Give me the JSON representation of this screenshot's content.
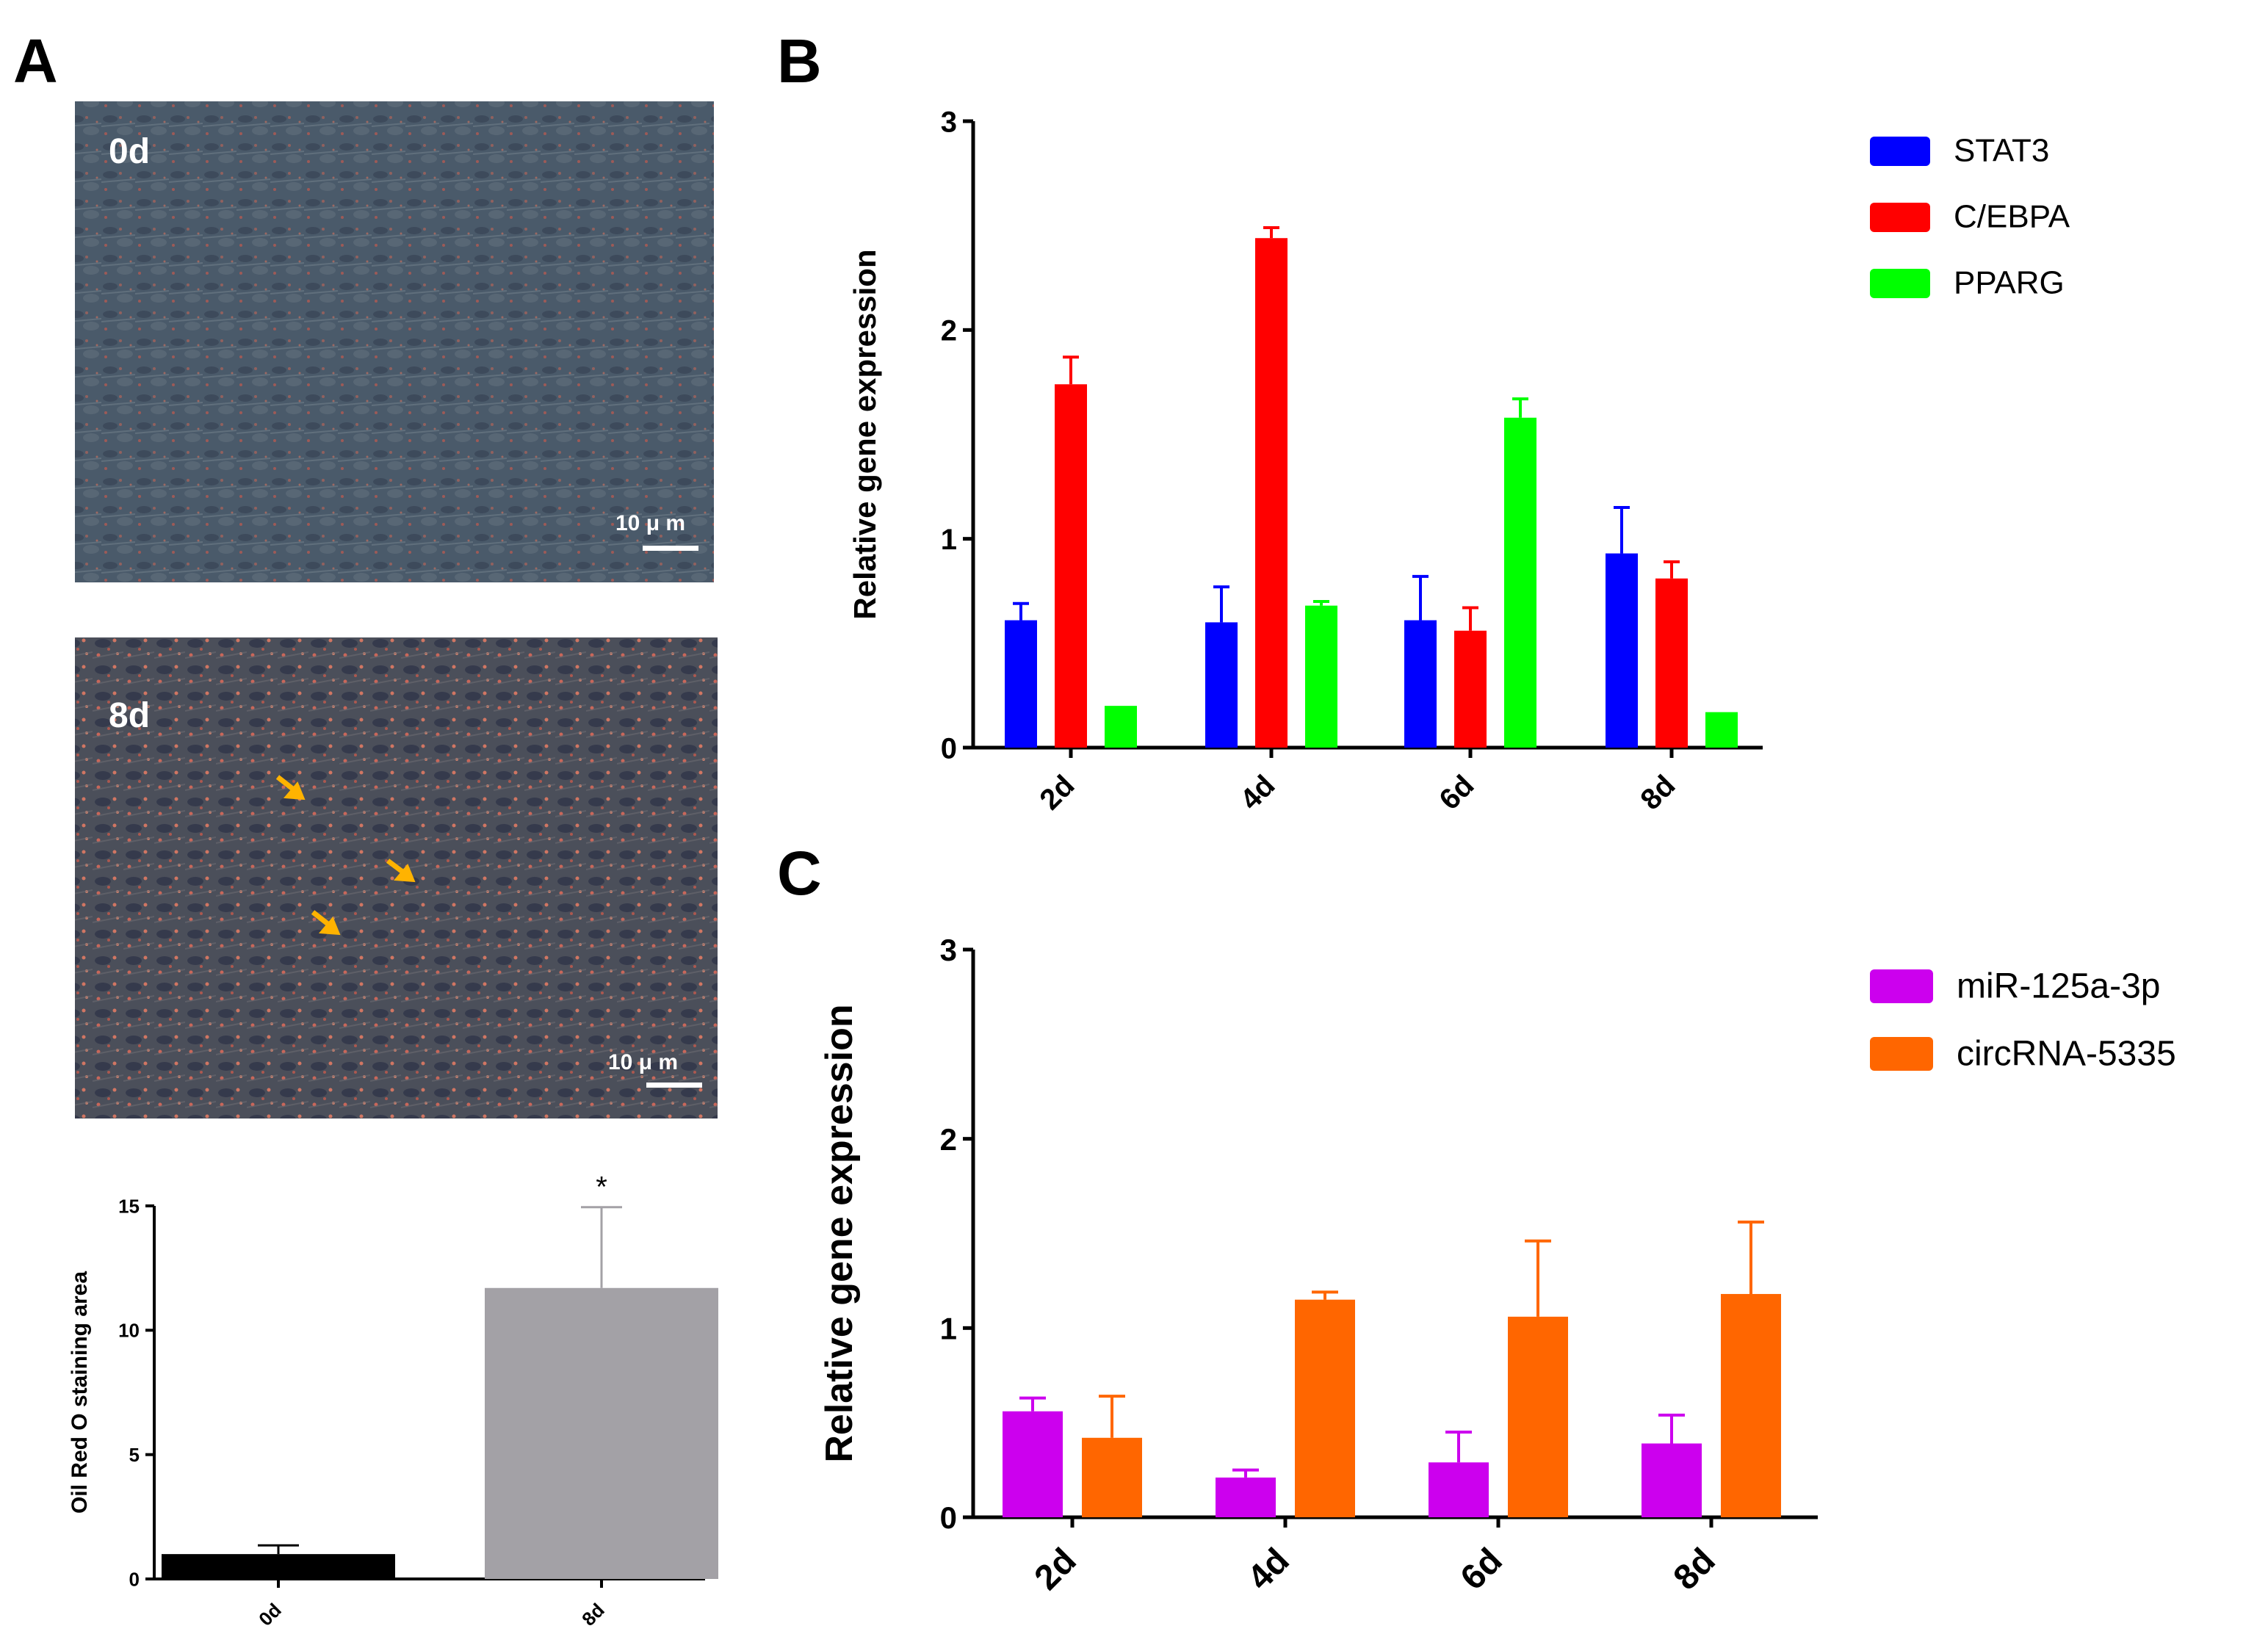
{
  "panels": {
    "a": "A",
    "b": "B",
    "c": "C"
  },
  "micrographs": [
    {
      "day_label": "0d",
      "scale_bar": "10 μ m"
    },
    {
      "day_label": "8d",
      "scale_bar": "10 μ m"
    }
  ],
  "colors": {
    "stat3": "#0000ff",
    "cebpa": "#ff0000",
    "pparg": "#00ff00",
    "mir": "#cc00ee",
    "circ": "#ff6600",
    "bar_0d": "#000000",
    "bar_8d": "#a3a1a6",
    "arrow": "#ffb300"
  },
  "chart_data": [
    {
      "id": "A-quant",
      "type": "bar",
      "categories": [
        "0d",
        "8d"
      ],
      "values": [
        1.0,
        11.7
      ],
      "errors": [
        0.35,
        3.25
      ],
      "colors": [
        "#000000",
        "#a3a1a6"
      ],
      "xlabel": "",
      "ylabel": "Oil Red O staining area",
      "ylim": [
        0,
        15
      ],
      "yticks": [
        0,
        5,
        10,
        15
      ],
      "annotations": [
        {
          "category": "8d",
          "text": "*"
        }
      ]
    },
    {
      "id": "B",
      "type": "bar",
      "categories": [
        "2d",
        "4d",
        "6d",
        "8d"
      ],
      "series": [
        {
          "name": "STAT3",
          "color": "#0000ff",
          "values": [
            0.61,
            0.6,
            0.61,
            0.93
          ],
          "errors": [
            0.08,
            0.17,
            0.21,
            0.22
          ]
        },
        {
          "name": "C/EBPA",
          "color": "#ff0000",
          "values": [
            1.74,
            2.44,
            0.56,
            0.81
          ],
          "errors": [
            0.13,
            0.05,
            0.11,
            0.08
          ]
        },
        {
          "name": "PPARG",
          "color": "#00ff00",
          "values": [
            0.2,
            0.68,
            1.58,
            0.17
          ],
          "errors": [
            0.0,
            0.02,
            0.09,
            0.0
          ]
        }
      ],
      "xlabel": "",
      "ylabel": "Relative gene expression",
      "ylim": [
        0,
        3
      ],
      "yticks": [
        0,
        1,
        2,
        3
      ],
      "legend": "top-right"
    },
    {
      "id": "C",
      "type": "bar",
      "categories": [
        "2d",
        "4d",
        "6d",
        "8d"
      ],
      "series": [
        {
          "name": "miR-125a-3p",
          "color": "#cc00ee",
          "values": [
            0.56,
            0.21,
            0.29,
            0.39
          ],
          "errors": [
            0.07,
            0.04,
            0.16,
            0.15
          ]
        },
        {
          "name": "circRNA-5335",
          "color": "#ff6600",
          "values": [
            0.42,
            1.15,
            1.06,
            1.18
          ],
          "errors": [
            0.22,
            0.04,
            0.4,
            0.38
          ]
        }
      ],
      "xlabel": "",
      "ylabel": "Relative gene expression",
      "ylim": [
        0,
        3
      ],
      "yticks": [
        0,
        1,
        2,
        3
      ],
      "legend": "top-right"
    }
  ]
}
